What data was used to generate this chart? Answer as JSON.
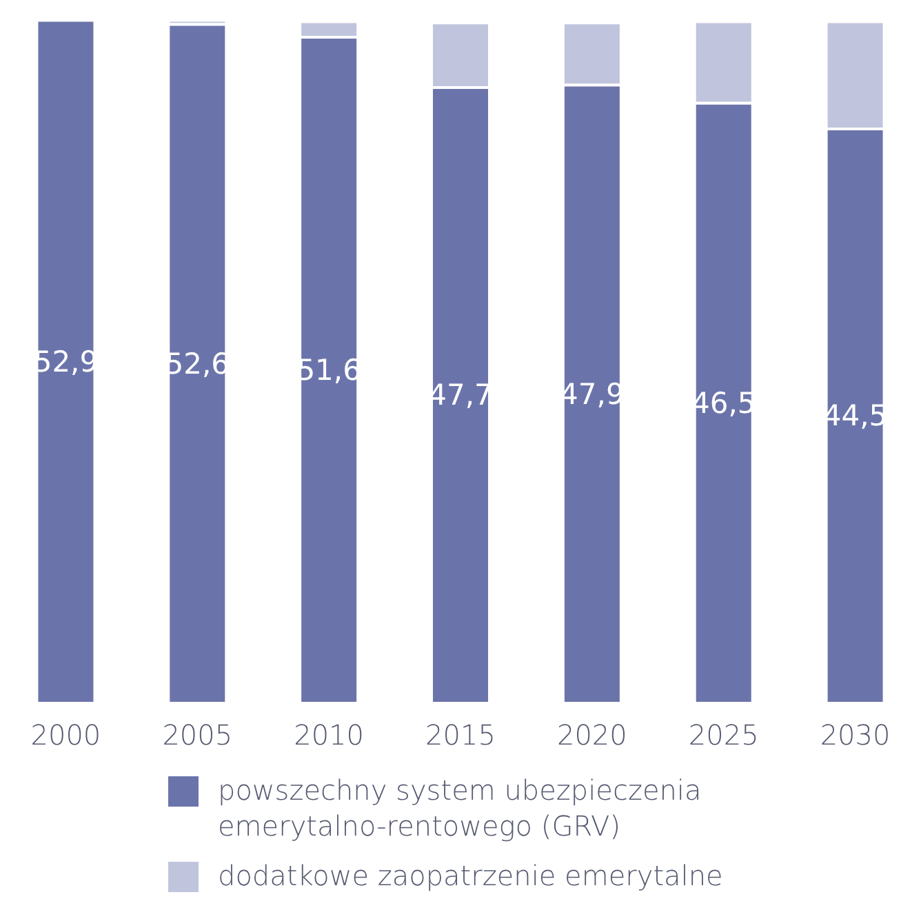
{
  "chart_data": {
    "type": "bar",
    "stacked": true,
    "categories": [
      "2000",
      "2005",
      "2010",
      "2015",
      "2020",
      "2025",
      "2030"
    ],
    "series": [
      {
        "name": "powszechny system ubezpieczenia emerytalno-rentowego (GRV)",
        "color": "#6b74aa",
        "values": [
          52.9,
          52.6,
          51.6,
          47.7,
          47.9,
          46.5,
          44.5
        ],
        "value_labels": [
          "52,9",
          "52,6",
          "51,6",
          "47,7",
          "47,9",
          "46,5",
          "44,5"
        ]
      },
      {
        "name": "dodatkowe zaopatrzenie emerytalne",
        "color": "#c0c4dc",
        "values": [
          0,
          0.3,
          1.2,
          5.0,
          4.8,
          6.3,
          8.3
        ]
      }
    ],
    "ylim": [
      0,
      53.2
    ],
    "legend": "bottom left"
  }
}
